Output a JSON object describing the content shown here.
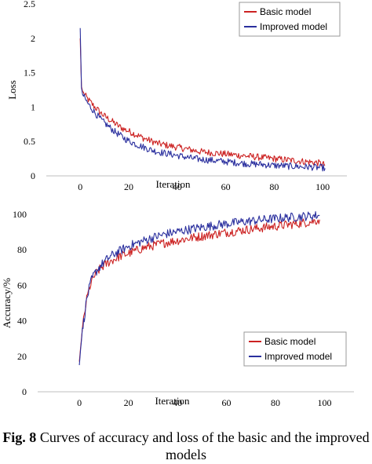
{
  "colors": {
    "basic": "#cc2222",
    "improved": "#2a2f9e",
    "axis": "#bfbfbf"
  },
  "caption": {
    "label": "Fig. 8",
    "text": " Curves of accuracy and loss of the basic and the improved models"
  },
  "chart_data": [
    {
      "type": "line",
      "title": "",
      "xlabel": "Iteration",
      "ylabel": "Loss",
      "xlim": [
        -14,
        110
      ],
      "ylim": [
        0,
        2.5
      ],
      "xticks": [
        0,
        20,
        40,
        60,
        80,
        100
      ],
      "yticks": [
        0,
        0.5,
        1,
        1.5,
        2,
        2.5
      ],
      "ytick_labels": [
        "0",
        "0.5",
        "1",
        "1.5",
        "2",
        "2.5"
      ],
      "grid": false,
      "legend_position": "top-right",
      "series": [
        {
          "name": "Basic model",
          "color": "#cc2222",
          "x": [
            0,
            0.5,
            1,
            2,
            3,
            4,
            5,
            6,
            7,
            8,
            9,
            10,
            12,
            14,
            16,
            18,
            20,
            23,
            26,
            29,
            32,
            35,
            38,
            41,
            44,
            47,
            50,
            53,
            56,
            59,
            62,
            65,
            68,
            71,
            74,
            77,
            80,
            83,
            86,
            89,
            92,
            95,
            98,
            100,
            101
          ],
          "y": [
            2.0,
            1.3,
            1.22,
            1.17,
            1.12,
            1.08,
            1.04,
            1.0,
            0.97,
            0.93,
            0.9,
            0.87,
            0.82,
            0.77,
            0.72,
            0.68,
            0.65,
            0.6,
            0.55,
            0.51,
            0.47,
            0.45,
            0.43,
            0.41,
            0.39,
            0.37,
            0.35,
            0.34,
            0.33,
            0.32,
            0.31,
            0.3,
            0.29,
            0.28,
            0.27,
            0.26,
            0.25,
            0.24,
            0.23,
            0.22,
            0.21,
            0.2,
            0.19,
            0.17,
            0.16
          ]
        },
        {
          "name": "Improved model",
          "color": "#2a2f9e",
          "x": [
            0,
            0.5,
            1,
            2,
            3,
            4,
            5,
            6,
            7,
            8,
            9,
            10,
            12,
            14,
            16,
            18,
            20,
            23,
            26,
            29,
            32,
            35,
            38,
            41,
            44,
            47,
            50,
            53,
            56,
            59,
            62,
            65,
            68,
            71,
            74,
            77,
            80,
            83,
            86,
            89,
            92,
            95,
            98,
            100,
            101
          ],
          "y": [
            2.15,
            1.28,
            1.18,
            1.12,
            1.06,
            1.01,
            0.97,
            0.92,
            0.88,
            0.84,
            0.8,
            0.77,
            0.71,
            0.65,
            0.6,
            0.55,
            0.51,
            0.46,
            0.42,
            0.38,
            0.35,
            0.33,
            0.31,
            0.29,
            0.27,
            0.25,
            0.24,
            0.23,
            0.22,
            0.21,
            0.2,
            0.19,
            0.18,
            0.17,
            0.17,
            0.16,
            0.15,
            0.15,
            0.14,
            0.14,
            0.13,
            0.13,
            0.12,
            0.12,
            0.11
          ]
        }
      ]
    },
    {
      "type": "line",
      "title": "",
      "xlabel": "Iteration",
      "ylabel": "Accuracy/%",
      "xlim": [
        -17,
        112
      ],
      "ylim": [
        0,
        100
      ],
      "xticks": [
        0,
        20,
        40,
        60,
        80,
        100
      ],
      "yticks": [
        0,
        20,
        40,
        60,
        80,
        100
      ],
      "ytick_labels": [
        "0",
        "20",
        "40",
        "60",
        "80",
        "100"
      ],
      "grid": false,
      "legend_position": "bottom-right",
      "series": [
        {
          "name": "Basic model",
          "color": "#cc2222",
          "x": [
            0,
            0.5,
            1,
            1.5,
            2,
            3,
            4,
            5,
            6,
            7,
            8,
            9,
            10,
            12,
            14,
            16,
            18,
            20,
            23,
            26,
            29,
            32,
            35,
            38,
            41,
            44,
            47,
            50,
            53,
            56,
            59,
            62,
            65,
            68,
            71,
            74,
            77,
            80,
            83,
            86,
            89,
            92,
            95,
            98
          ],
          "y": [
            17,
            25,
            32,
            38,
            43,
            52,
            58,
            62,
            65,
            67,
            68.5,
            70,
            71,
            73,
            74.5,
            76,
            77,
            78,
            79.5,
            81,
            82,
            83,
            84,
            84.8,
            85.5,
            86.3,
            87,
            87.7,
            88.3,
            89,
            89.6,
            90.2,
            90.8,
            91.3,
            91.8,
            92.3,
            92.8,
            93.3,
            93.8,
            94.3,
            94.8,
            95.3,
            96,
            97
          ]
        },
        {
          "name": "Improved model",
          "color": "#2a2f9e",
          "x": [
            0,
            0.5,
            1,
            1.5,
            2,
            3,
            4,
            5,
            6,
            7,
            8,
            9,
            10,
            12,
            14,
            16,
            18,
            20,
            23,
            26,
            29,
            32,
            35,
            38,
            41,
            44,
            47,
            50,
            53,
            56,
            59,
            62,
            65,
            68,
            71,
            74,
            77,
            80,
            83,
            86,
            89,
            92,
            95,
            98
          ],
          "y": [
            15,
            24,
            31,
            37,
            42,
            52,
            58,
            63,
            66,
            68,
            70,
            71.5,
            73,
            75.5,
            77.5,
            79,
            80.5,
            82,
            83.5,
            85,
            86.5,
            87.7,
            88.8,
            89.7,
            90.5,
            91.3,
            92,
            92.7,
            93.3,
            94,
            94.5,
            95,
            95.5,
            96,
            96.4,
            96.8,
            97.2,
            97.6,
            98,
            98.3,
            98.6,
            98.9,
            99.2,
            99.5
          ]
        }
      ]
    }
  ]
}
